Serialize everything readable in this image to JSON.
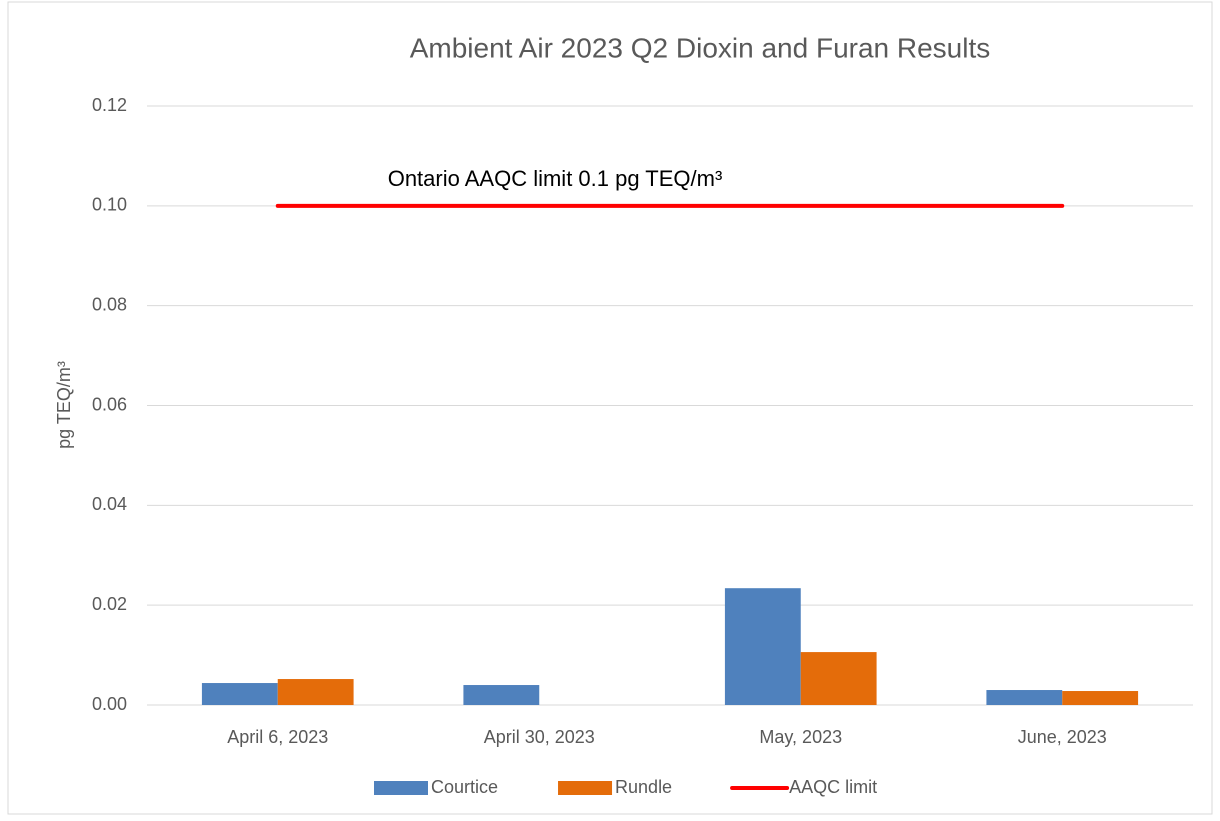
{
  "chart_data": {
    "type": "bar",
    "title": "Ambient Air 2023 Q2 Dioxin and Furan Results",
    "y_label": "pg TEQ/m³",
    "annotation": "Ontario AAQC limit 0.1 pg TEQ/m³",
    "categories": [
      "April 6, 2023",
      "April 30, 2023",
      "May, 2023",
      "June, 2023"
    ],
    "series": [
      {
        "name": "Courtice",
        "color": "#4f81bd",
        "values": [
          0.0044,
          0.004,
          0.0234,
          0.003
        ]
      },
      {
        "name": "Rundle",
        "color": "#e46c0a",
        "values": [
          0.0052,
          null,
          0.0106,
          0.0028
        ]
      },
      {
        "name": "AAQC limit",
        "type": "line",
        "color": "#ff0000",
        "values": [
          0.1,
          0.1,
          0.1,
          0.1
        ]
      }
    ],
    "ylim": [
      0,
      0.12
    ],
    "yticks": [
      {
        "value": 0,
        "label": "0.00"
      },
      {
        "value": 0.02,
        "label": "0.02"
      },
      {
        "value": 0.04,
        "label": "0.04"
      },
      {
        "value": 0.06,
        "label": "0.06"
      },
      {
        "value": 0.08,
        "label": "0.08"
      },
      {
        "value": 0.1,
        "label": "0.10"
      },
      {
        "value": 0.12,
        "label": "0.12"
      }
    ],
    "grid": true,
    "legend": "bottom"
  }
}
